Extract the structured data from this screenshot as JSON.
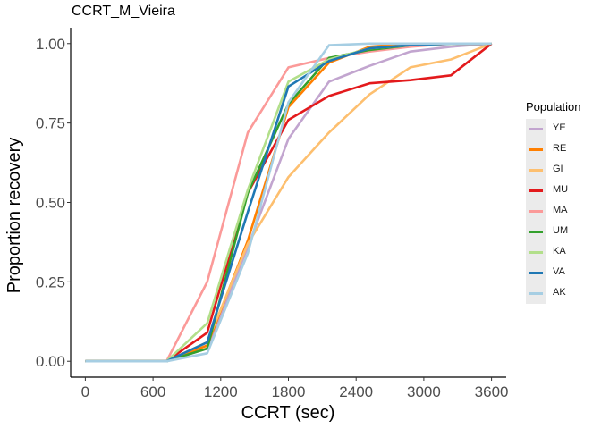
{
  "chart_data": {
    "type": "line",
    "title": "CCRT_M_Vieira",
    "xlabel": "CCRT (sec)",
    "ylabel": "Proportion recovery",
    "xlim": [
      -130,
      3730
    ],
    "ylim": [
      -0.05,
      1.05
    ],
    "xticks": [
      0,
      600,
      1200,
      1800,
      2400,
      3000,
      3600
    ],
    "yticks": [
      0.0,
      0.25,
      0.5,
      0.75,
      1.0
    ],
    "ytick_labels": [
      "0.00",
      "0.25",
      "0.50",
      "0.75",
      "1.00"
    ],
    "grid": false,
    "legend_title": "Population",
    "legend_position": "right",
    "series": [
      {
        "name": "YE",
        "color": "#c2a5cf",
        "points": [
          [
            0,
            0
          ],
          [
            720,
            0
          ],
          [
            1080,
            0.04
          ],
          [
            1440,
            0.36
          ],
          [
            1800,
            0.7
          ],
          [
            2160,
            0.88
          ],
          [
            2520,
            0.93
          ],
          [
            2880,
            0.975
          ],
          [
            3240,
            0.99
          ],
          [
            3600,
            1.0
          ]
        ]
      },
      {
        "name": "RE",
        "color": "#ff7f00",
        "points": [
          [
            0,
            0
          ],
          [
            720,
            0
          ],
          [
            1080,
            0.05
          ],
          [
            1440,
            0.38
          ],
          [
            1800,
            0.8
          ],
          [
            2160,
            0.94
          ],
          [
            2520,
            0.99
          ],
          [
            2880,
            1.0
          ],
          [
            3240,
            1.0
          ],
          [
            3600,
            1.0
          ]
        ]
      },
      {
        "name": "GI",
        "color": "#fdbf6f",
        "points": [
          [
            0,
            0
          ],
          [
            720,
            0
          ],
          [
            1080,
            0.06
          ],
          [
            1440,
            0.37
          ],
          [
            1800,
            0.58
          ],
          [
            2160,
            0.72
          ],
          [
            2520,
            0.84
          ],
          [
            2880,
            0.925
          ],
          [
            3240,
            0.95
          ],
          [
            3600,
            1.0
          ]
        ]
      },
      {
        "name": "MU",
        "color": "#e31a1c",
        "points": [
          [
            0,
            0
          ],
          [
            720,
            0
          ],
          [
            1080,
            0.09
          ],
          [
            1440,
            0.53
          ],
          [
            1800,
            0.76
          ],
          [
            2160,
            0.835
          ],
          [
            2520,
            0.875
          ],
          [
            2880,
            0.885
          ],
          [
            3240,
            0.9
          ],
          [
            3600,
            1.0
          ]
        ]
      },
      {
        "name": "MA",
        "color": "#fb9a99",
        "points": [
          [
            0,
            0
          ],
          [
            720,
            0
          ],
          [
            1080,
            0.25
          ],
          [
            1440,
            0.72
          ],
          [
            1800,
            0.925
          ],
          [
            2160,
            0.955
          ],
          [
            2520,
            0.975
          ],
          [
            2880,
            0.99
          ],
          [
            3240,
            1.0
          ],
          [
            3600,
            1.0
          ]
        ]
      },
      {
        "name": "UM",
        "color": "#33a02c",
        "points": [
          [
            0,
            0
          ],
          [
            720,
            0
          ],
          [
            1080,
            0.04
          ],
          [
            1440,
            0.53
          ],
          [
            1800,
            0.81
          ],
          [
            2160,
            0.955
          ],
          [
            2520,
            0.98
          ],
          [
            2880,
            0.995
          ],
          [
            3240,
            1.0
          ],
          [
            3600,
            1.0
          ]
        ]
      },
      {
        "name": "KA",
        "color": "#b2df8a",
        "points": [
          [
            0,
            0
          ],
          [
            720,
            0
          ],
          [
            1080,
            0.12
          ],
          [
            1440,
            0.54
          ],
          [
            1800,
            0.88
          ],
          [
            2160,
            0.95
          ],
          [
            2520,
            0.985
          ],
          [
            2880,
            0.995
          ],
          [
            3240,
            1.0
          ],
          [
            3600,
            1.0
          ]
        ]
      },
      {
        "name": "VA",
        "color": "#1f78b4",
        "points": [
          [
            0,
            0
          ],
          [
            720,
            0
          ],
          [
            1080,
            0.06
          ],
          [
            1440,
            0.47
          ],
          [
            1800,
            0.865
          ],
          [
            2160,
            0.945
          ],
          [
            2520,
            0.985
          ],
          [
            2880,
            0.995
          ],
          [
            3240,
            1.0
          ],
          [
            3600,
            1.0
          ]
        ]
      },
      {
        "name": "AK",
        "color": "#a6cee3",
        "points": [
          [
            0,
            0
          ],
          [
            720,
            0
          ],
          [
            1080,
            0.025
          ],
          [
            1440,
            0.34
          ],
          [
            1800,
            0.815
          ],
          [
            2160,
            0.995
          ],
          [
            2520,
            1.0
          ],
          [
            2880,
            1.0
          ],
          [
            3240,
            1.0
          ],
          [
            3600,
            1.0
          ]
        ]
      }
    ]
  }
}
